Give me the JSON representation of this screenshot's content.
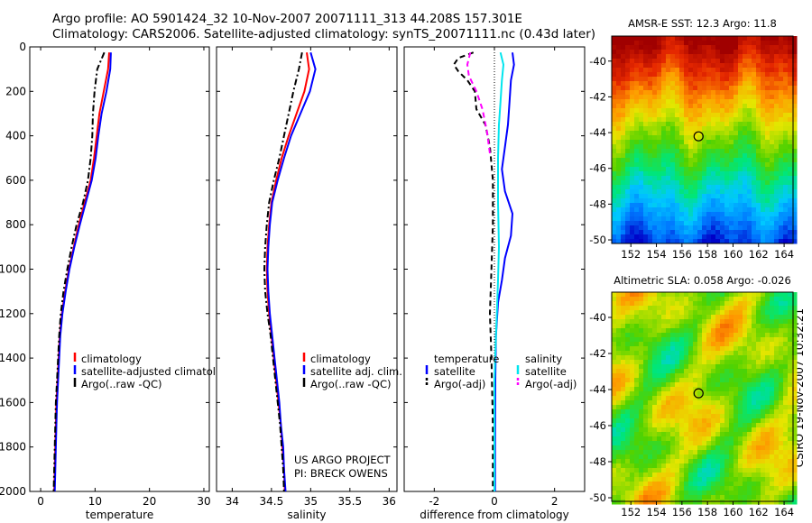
{
  "header": {
    "line1": "Argo profile: AO 5901424_32 10-Nov-2007 20071111_313 44.208S 157.301E",
    "line2": "Climatology: CARS2006. Satellite-adjusted climatology: synTS_20071111.nc (0.43d later)"
  },
  "credit": "CSIRO 19-Nov-2007 10:32:21",
  "colors": {
    "red": "#ff0000",
    "blue": "#0000ff",
    "black": "#000000",
    "cyan": "#00e5ee",
    "magenta": "#ff00ff"
  },
  "chart_data": [
    {
      "type": "line",
      "title": "",
      "xlabel": "temperature",
      "ylabel": "",
      "xlim": [
        -2,
        31
      ],
      "ylim": [
        2000,
        0
      ],
      "y_inverted": true,
      "xticks": [
        0,
        10,
        20,
        30
      ],
      "yticks": [
        0,
        200,
        400,
        600,
        800,
        1000,
        1200,
        1400,
        1600,
        1800,
        2000
      ],
      "legend": {
        "placement": "lower-right",
        "entries": [
          "climatology",
          "satellite-adjusted climatology",
          "Argo(..raw -QC)"
        ]
      },
      "series": [
        {
          "name": "climatology",
          "color": "red",
          "style": "solid",
          "points": [
            [
              12.6,
              25
            ],
            [
              12.4,
              100
            ],
            [
              11.6,
              200
            ],
            [
              10.8,
              300
            ],
            [
              10.3,
              400
            ],
            [
              9.8,
              500
            ],
            [
              9.2,
              600
            ],
            [
              8.1,
              700
            ],
            [
              7.0,
              800
            ],
            [
              6.1,
              900
            ],
            [
              5.2,
              1000
            ],
            [
              4.5,
              1100
            ],
            [
              3.9,
              1200
            ],
            [
              3.5,
              1300
            ],
            [
              3.3,
              1400
            ],
            [
              3.1,
              1500
            ],
            [
              2.9,
              1600
            ],
            [
              2.8,
              1700
            ],
            [
              2.7,
              1800
            ],
            [
              2.6,
              1900
            ],
            [
              2.5,
              2000
            ]
          ]
        },
        {
          "name": "satellite-adjusted climatology",
          "color": "blue",
          "style": "solid",
          "points": [
            [
              12.9,
              25
            ],
            [
              12.8,
              100
            ],
            [
              12.1,
              200
            ],
            [
              11.2,
              300
            ],
            [
              10.6,
              400
            ],
            [
              10.1,
              500
            ],
            [
              9.4,
              600
            ],
            [
              8.3,
              700
            ],
            [
              7.2,
              800
            ],
            [
              6.2,
              900
            ],
            [
              5.3,
              1000
            ],
            [
              4.6,
              1100
            ],
            [
              4.0,
              1200
            ],
            [
              3.6,
              1300
            ],
            [
              3.4,
              1400
            ],
            [
              3.2,
              1500
            ],
            [
              3.0,
              1600
            ],
            [
              2.9,
              1700
            ],
            [
              2.8,
              1800
            ],
            [
              2.7,
              1900
            ],
            [
              2.6,
              2000
            ]
          ]
        },
        {
          "name": "Argo(..raw -QC)",
          "color": "black",
          "style": "dashdot",
          "points": [
            [
              11.7,
              25
            ],
            [
              10.4,
              100
            ],
            [
              9.9,
              200
            ],
            [
              9.6,
              300
            ],
            [
              9.5,
              400
            ],
            [
              9.2,
              500
            ],
            [
              8.7,
              600
            ],
            [
              7.8,
              700
            ],
            [
              6.6,
              800
            ],
            [
              5.7,
              900
            ],
            [
              4.9,
              1000
            ],
            [
              4.2,
              1100
            ],
            [
              3.7,
              1200
            ],
            [
              3.4,
              1300
            ],
            [
              3.2,
              1400
            ],
            [
              3.0,
              1500
            ],
            [
              2.8,
              1600
            ],
            [
              2.7,
              1700
            ],
            [
              2.6,
              1800
            ],
            [
              2.5,
              1900
            ],
            [
              2.4,
              2000
            ]
          ]
        }
      ]
    },
    {
      "type": "line",
      "title": "",
      "xlabel": "salinity",
      "ylabel": "",
      "xlim": [
        33.8,
        36.1
      ],
      "ylim": [
        2000,
        0
      ],
      "y_inverted": true,
      "xticks": [
        34,
        34.5,
        35,
        35.5,
        36
      ],
      "legend": {
        "placement": "lower-right",
        "entries": [
          "climatology",
          "satellite adj. clim.",
          "Argo(..raw -QC)"
        ]
      },
      "annotation": {
        "line1": "US ARGO PROJECT",
        "line2": "PI: BRECK OWENS"
      },
      "series": [
        {
          "name": "climatology",
          "color": "red",
          "style": "solid",
          "points": [
            [
              34.95,
              25
            ],
            [
              34.98,
              100
            ],
            [
              34.92,
              200
            ],
            [
              34.82,
              300
            ],
            [
              34.72,
              400
            ],
            [
              34.63,
              500
            ],
            [
              34.56,
              600
            ],
            [
              34.5,
              700
            ],
            [
              34.47,
              800
            ],
            [
              34.45,
              900
            ],
            [
              34.44,
              1000
            ],
            [
              34.45,
              1100
            ],
            [
              34.47,
              1200
            ],
            [
              34.5,
              1300
            ],
            [
              34.53,
              1400
            ],
            [
              34.56,
              1500
            ],
            [
              34.59,
              1600
            ],
            [
              34.62,
              1700
            ],
            [
              34.64,
              1800
            ],
            [
              34.66,
              1900
            ],
            [
              34.67,
              2000
            ]
          ]
        },
        {
          "name": "satellite adj. clim.",
          "color": "blue",
          "style": "solid",
          "points": [
            [
              35.0,
              25
            ],
            [
              35.06,
              100
            ],
            [
              34.99,
              200
            ],
            [
              34.87,
              300
            ],
            [
              34.75,
              400
            ],
            [
              34.66,
              500
            ],
            [
              34.58,
              600
            ],
            [
              34.51,
              700
            ],
            [
              34.48,
              800
            ],
            [
              34.46,
              900
            ],
            [
              34.45,
              1000
            ],
            [
              34.46,
              1100
            ],
            [
              34.48,
              1200
            ],
            [
              34.51,
              1300
            ],
            [
              34.54,
              1400
            ],
            [
              34.57,
              1500
            ],
            [
              34.6,
              1600
            ],
            [
              34.62,
              1700
            ],
            [
              34.65,
              1800
            ],
            [
              34.66,
              1900
            ],
            [
              34.68,
              2000
            ]
          ]
        },
        {
          "name": "Argo(..raw -QC)",
          "color": "black",
          "style": "dashdot",
          "points": [
            [
              34.89,
              25
            ],
            [
              34.85,
              100
            ],
            [
              34.78,
              200
            ],
            [
              34.72,
              300
            ],
            [
              34.66,
              400
            ],
            [
              34.6,
              500
            ],
            [
              34.53,
              600
            ],
            [
              34.47,
              700
            ],
            [
              34.44,
              800
            ],
            [
              34.42,
              900
            ],
            [
              34.41,
              1000
            ],
            [
              34.42,
              1100
            ],
            [
              34.45,
              1200
            ],
            [
              34.49,
              1300
            ],
            [
              34.52,
              1400
            ],
            [
              34.55,
              1500
            ],
            [
              34.58,
              1600
            ],
            [
              34.61,
              1700
            ],
            [
              34.63,
              1800
            ],
            [
              34.65,
              1900
            ],
            [
              34.66,
              2000
            ]
          ]
        }
      ]
    },
    {
      "type": "line",
      "title": "",
      "xlabel": "difference from climatology",
      "ylabel": "",
      "xlim": [
        -3,
        3
      ],
      "ylim": [
        2000,
        0
      ],
      "y_inverted": true,
      "xticks": [
        -2,
        0,
        2
      ],
      "zero_line": true,
      "legend": {
        "placement": "lower-center",
        "groups": [
          {
            "heading": "temperature",
            "entries": [
              "satellite",
              "Argo(-adj)"
            ]
          },
          {
            "heading": "salinity",
            "entries": [
              "satellite",
              "Argo(-adj)"
            ]
          }
        ]
      },
      "series": [
        {
          "name": "temperature satellite",
          "color": "blue",
          "style": "solid",
          "points": [
            [
              0.6,
              25
            ],
            [
              0.65,
              80
            ],
            [
              0.55,
              150
            ],
            [
              0.5,
              250
            ],
            [
              0.45,
              350
            ],
            [
              0.35,
              450
            ],
            [
              0.25,
              550
            ],
            [
              0.35,
              650
            ],
            [
              0.6,
              750
            ],
            [
              0.55,
              850
            ],
            [
              0.35,
              950
            ],
            [
              0.25,
              1050
            ],
            [
              0.12,
              1150
            ],
            [
              0.05,
              1300
            ],
            [
              0.03,
              1500
            ],
            [
              0.02,
              1800
            ],
            [
              0.02,
              2000
            ]
          ]
        },
        {
          "name": "temperature Argo(-adj)",
          "color": "black",
          "style": "dashed",
          "points": [
            [
              -0.7,
              25
            ],
            [
              -1.2,
              50
            ],
            [
              -1.35,
              80
            ],
            [
              -1.2,
              110
            ],
            [
              -0.9,
              150
            ],
            [
              -0.65,
              200
            ],
            [
              -0.6,
              280
            ],
            [
              -0.3,
              350
            ],
            [
              -0.15,
              450
            ],
            [
              -0.05,
              600
            ],
            [
              -0.05,
              800
            ],
            [
              -0.1,
              1000
            ],
            [
              -0.15,
              1200
            ],
            [
              -0.1,
              1400
            ],
            [
              -0.05,
              1700
            ],
            [
              -0.05,
              2000
            ]
          ]
        },
        {
          "name": "salinity satellite",
          "color": "cyan",
          "style": "solid",
          "points": [
            [
              0.2,
              25
            ],
            [
              0.3,
              80
            ],
            [
              0.25,
              150
            ],
            [
              0.2,
              250
            ],
            [
              0.15,
              350
            ],
            [
              0.12,
              500
            ],
            [
              0.12,
              700
            ],
            [
              0.15,
              900
            ],
            [
              0.12,
              1050
            ],
            [
              0.08,
              1200
            ],
            [
              0.05,
              1300
            ],
            [
              0.0,
              1500
            ],
            [
              0.0,
              2000
            ]
          ]
        },
        {
          "name": "salinity Argo(-adj)",
          "color": "magenta",
          "style": "dashed",
          "points": [
            [
              -0.8,
              25
            ],
            [
              -0.9,
              80
            ],
            [
              -0.85,
              130
            ],
            [
              -0.6,
              200
            ],
            [
              -0.4,
              280
            ],
            [
              -0.25,
              380
            ],
            [
              -0.15,
              480
            ]
          ]
        }
      ]
    },
    {
      "type": "heatmap",
      "title": "AMSR-E SST: 12.3 Argo: 11.8",
      "xlabel": "",
      "ylabel": "",
      "xlim": [
        150.5,
        164.7
      ],
      "ylim": [
        -50.2,
        -38.6
      ],
      "xticks": [
        152,
        154,
        156,
        158,
        160,
        162,
        164
      ],
      "yticks": [
        -40,
        -42,
        -44,
        -46,
        -48,
        -50
      ],
      "profile_marker": {
        "lon": 157.301,
        "lat": -44.208
      },
      "colormap": [
        "#0000c8",
        "#0078ff",
        "#00c8ff",
        "#00e678",
        "#50d200",
        "#e6e600",
        "#ff9600",
        "#e62800",
        "#a00000"
      ]
    },
    {
      "type": "heatmap",
      "title": "Altimetric SLA: 0.058 Argo: -0.026",
      "xlabel": "",
      "ylabel": "",
      "xlim": [
        150.5,
        164.7
      ],
      "ylim": [
        -50.2,
        -38.6
      ],
      "xticks": [
        152,
        154,
        156,
        158,
        160,
        162,
        164
      ],
      "yticks": [
        -40,
        -42,
        -44,
        -46,
        -48,
        -50
      ],
      "profile_marker": {
        "lon": 157.301,
        "lat": -44.208
      },
      "colormap": [
        "#0000c8",
        "#0078ff",
        "#00c8ff",
        "#00e678",
        "#50d200",
        "#e6e600",
        "#ff9600",
        "#e62800",
        "#a00000"
      ]
    }
  ]
}
